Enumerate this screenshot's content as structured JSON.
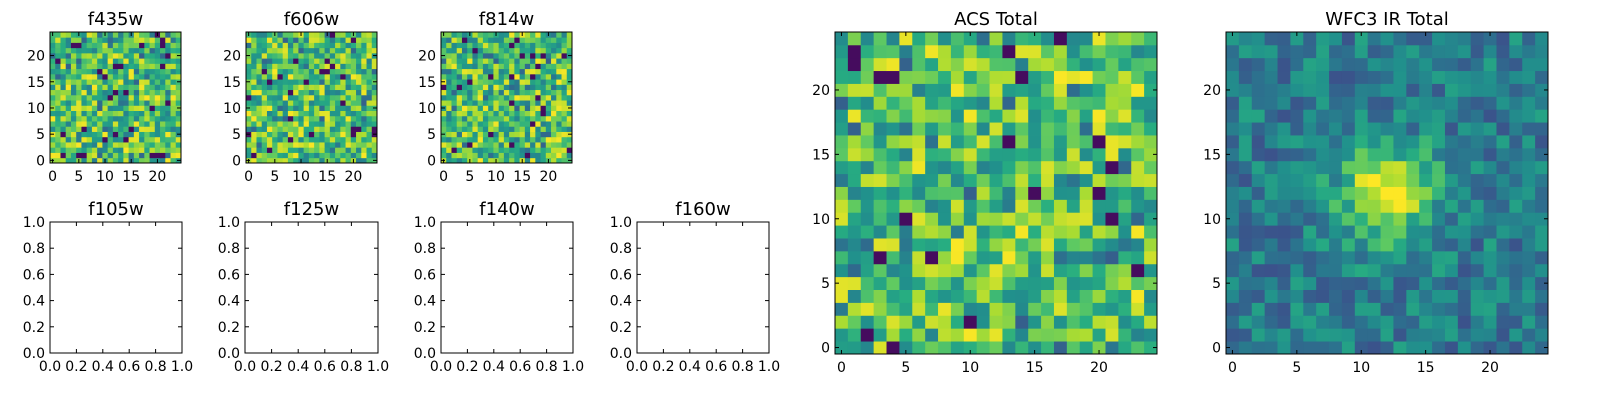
{
  "chart_data": [
    {
      "type": "heatmap",
      "title": "f435w",
      "grid_size": 25,
      "xlim": [
        -0.5,
        24.5
      ],
      "ylim": [
        -0.5,
        24.5
      ],
      "x_ticks": [
        0,
        5,
        10,
        15,
        20
      ],
      "y_ticks": [
        0,
        5,
        10,
        15,
        20
      ],
      "colormap": "viridis",
      "pattern": "noise",
      "grid": false
    },
    {
      "type": "heatmap",
      "title": "f606w",
      "grid_size": 25,
      "xlim": [
        -0.5,
        24.5
      ],
      "ylim": [
        -0.5,
        24.5
      ],
      "x_ticks": [
        0,
        5,
        10,
        15,
        20
      ],
      "y_ticks": [
        0,
        5,
        10,
        15,
        20
      ],
      "colormap": "viridis",
      "pattern": "noise",
      "grid": false
    },
    {
      "type": "heatmap",
      "title": "f814w",
      "grid_size": 25,
      "xlim": [
        -0.5,
        24.5
      ],
      "ylim": [
        -0.5,
        24.5
      ],
      "x_ticks": [
        0,
        5,
        10,
        15,
        20
      ],
      "y_ticks": [
        0,
        5,
        10,
        15,
        20
      ],
      "colormap": "viridis",
      "pattern": "noise",
      "grid": false
    },
    {
      "type": "empty",
      "title": "f105w",
      "xlim": [
        0,
        1
      ],
      "ylim": [
        0,
        1
      ],
      "x_ticks": [
        "0.0",
        "0.2",
        "0.4",
        "0.6",
        "0.8",
        "1.0"
      ],
      "y_ticks": [
        "0.0",
        "0.2",
        "0.4",
        "0.6",
        "0.8",
        "1.0"
      ]
    },
    {
      "type": "empty",
      "title": "f125w",
      "xlim": [
        0,
        1
      ],
      "ylim": [
        0,
        1
      ],
      "x_ticks": [
        "0.0",
        "0.2",
        "0.4",
        "0.6",
        "0.8",
        "1.0"
      ],
      "y_ticks": [
        "0.0",
        "0.2",
        "0.4",
        "0.6",
        "0.8",
        "1.0"
      ]
    },
    {
      "type": "empty",
      "title": "f140w",
      "xlim": [
        0,
        1
      ],
      "ylim": [
        0,
        1
      ],
      "x_ticks": [
        "0.0",
        "0.2",
        "0.4",
        "0.6",
        "0.8",
        "1.0"
      ],
      "y_ticks": [
        "0.0",
        "0.2",
        "0.4",
        "0.6",
        "0.8",
        "1.0"
      ]
    },
    {
      "type": "empty",
      "title": "f160w",
      "xlim": [
        0,
        1
      ],
      "ylim": [
        0,
        1
      ],
      "x_ticks": [
        "0.0",
        "0.2",
        "0.4",
        "0.6",
        "0.8",
        "1.0"
      ],
      "y_ticks": [
        "0.0",
        "0.2",
        "0.4",
        "0.6",
        "0.8",
        "1.0"
      ]
    },
    {
      "type": "heatmap",
      "title": "ACS Total",
      "grid_size": 25,
      "xlim": [
        -0.5,
        24.5
      ],
      "ylim": [
        -0.5,
        24.5
      ],
      "x_ticks": [
        0,
        5,
        10,
        15,
        20
      ],
      "y_ticks": [
        0,
        5,
        10,
        15,
        20
      ],
      "colormap": "viridis",
      "pattern": "noise",
      "grid": false
    },
    {
      "type": "heatmap",
      "title": "WFC3 IR Total",
      "grid_size": 25,
      "xlim": [
        -0.5,
        24.5
      ],
      "ylim": [
        -0.5,
        24.5
      ],
      "x_ticks": [
        0,
        5,
        10,
        15,
        20
      ],
      "y_ticks": [
        0,
        5,
        10,
        15,
        20
      ],
      "colormap": "viridis",
      "pattern": "central-blob",
      "peak_center": [
        12,
        12
      ],
      "grid": false
    }
  ],
  "colors": {
    "background": "#ffffff",
    "axes": "#000000",
    "viridis_low": "#440154",
    "viridis_mid": "#21918c",
    "viridis_high": "#fde725"
  }
}
